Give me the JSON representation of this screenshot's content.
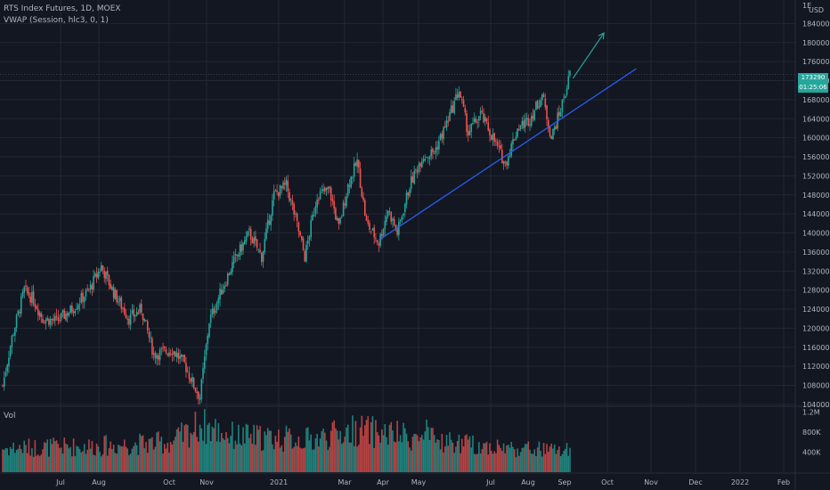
{
  "chart_data": {
    "type": "candlestick",
    "header": {
      "symbol_line": "RTS Index Futures, 1D, MOEX",
      "indicator_line": "VWAP (Session, hlc3, 0, 1)"
    },
    "currency": "USD",
    "price_ticks": [
      104000,
      108000,
      112000,
      116000,
      120000,
      124000,
      128000,
      132000,
      136000,
      140000,
      144000,
      148000,
      152000,
      156000,
      160000,
      164000,
      168000,
      172000,
      176000,
      180000,
      184000
    ],
    "price_tick_labels": [
      "104000",
      "108000",
      "112000",
      "116000",
      "120000",
      "124000",
      "128000",
      "132000",
      "136000",
      "140000",
      "144000",
      "148000",
      "152000",
      "156000",
      "160000",
      "164000",
      "168000",
      "172000",
      "176000",
      "180000",
      "184000"
    ],
    "top_cut_label": "1E",
    "ylim": [
      103800,
      188000
    ],
    "volume_label": "Vol",
    "volume_ticks": [
      "1.2M",
      "800K",
      "400K"
    ],
    "volume_tick_values": [
      1200000,
      800000,
      400000
    ],
    "x_month_labels": [
      "Jul",
      "Aug",
      "Oct",
      "Nov",
      "2021",
      "Mar",
      "Apr",
      "May",
      "Jul",
      "Aug",
      "Sep",
      "Oct",
      "Nov",
      "Dec",
      "2022",
      "Feb"
    ],
    "last_price": "173290",
    "last_price_sub": "01:25:06",
    "colors": {
      "up": "#26a69a",
      "down": "#ef5350",
      "background": "#131722",
      "grid": "#232733",
      "trendline": "#2962ff",
      "arrow": "#26a69a",
      "axis_text": "#b2b5be"
    },
    "keyframes": [
      {
        "t": 0,
        "p": 108000
      },
      {
        "t": 6,
        "p": 118000
      },
      {
        "t": 14,
        "p": 128000
      },
      {
        "t": 20,
        "p": 126000
      },
      {
        "t": 26,
        "p": 122000
      },
      {
        "t": 35,
        "p": 121500
      },
      {
        "t": 45,
        "p": 124000
      },
      {
        "t": 56,
        "p": 128000
      },
      {
        "t": 64,
        "p": 133000
      },
      {
        "t": 72,
        "p": 127500
      },
      {
        "t": 82,
        "p": 122000
      },
      {
        "t": 90,
        "p": 124000
      },
      {
        "t": 98,
        "p": 114500
      },
      {
        "t": 110,
        "p": 115500
      },
      {
        "t": 118,
        "p": 112500
      },
      {
        "t": 124,
        "p": 108000
      },
      {
        "t": 128,
        "p": 105500
      },
      {
        "t": 134,
        "p": 121500
      },
      {
        "t": 142,
        "p": 128000
      },
      {
        "t": 150,
        "p": 134000
      },
      {
        "t": 160,
        "p": 140000
      },
      {
        "t": 168,
        "p": 135000
      },
      {
        "t": 176,
        "p": 148000
      },
      {
        "t": 184,
        "p": 150000
      },
      {
        "t": 190,
        "p": 143000
      },
      {
        "t": 196,
        "p": 135000
      },
      {
        "t": 204,
        "p": 148000
      },
      {
        "t": 212,
        "p": 149000
      },
      {
        "t": 218,
        "p": 141000
      },
      {
        "t": 224,
        "p": 150000
      },
      {
        "t": 230,
        "p": 155000
      },
      {
        "t": 236,
        "p": 142000
      },
      {
        "t": 244,
        "p": 138000
      },
      {
        "t": 250,
        "p": 145000
      },
      {
        "t": 256,
        "p": 140000
      },
      {
        "t": 264,
        "p": 150000
      },
      {
        "t": 272,
        "p": 156000
      },
      {
        "t": 280,
        "p": 157000
      },
      {
        "t": 288,
        "p": 163000
      },
      {
        "t": 296,
        "p": 170000
      },
      {
        "t": 302,
        "p": 161000
      },
      {
        "t": 310,
        "p": 165000
      },
      {
        "t": 318,
        "p": 160000
      },
      {
        "t": 326,
        "p": 154500
      },
      {
        "t": 334,
        "p": 162000
      },
      {
        "t": 342,
        "p": 164000
      },
      {
        "t": 350,
        "p": 169000
      },
      {
        "t": 356,
        "p": 160000
      },
      {
        "t": 362,
        "p": 166000
      },
      {
        "t": 368,
        "p": 173300
      }
    ],
    "volume_keyframes": [
      {
        "t": 0,
        "v": 480000
      },
      {
        "t": 60,
        "v": 520000
      },
      {
        "t": 110,
        "v": 600000
      },
      {
        "t": 128,
        "v": 950000
      },
      {
        "t": 150,
        "v": 720000
      },
      {
        "t": 200,
        "v": 650000
      },
      {
        "t": 230,
        "v": 850000
      },
      {
        "t": 260,
        "v": 720000
      },
      {
        "t": 300,
        "v": 560000
      },
      {
        "t": 330,
        "v": 480000
      },
      {
        "t": 368,
        "v": 420000
      }
    ],
    "trendline": {
      "t1": 244,
      "p1": 138500,
      "t2": 411,
      "p2": 174500
    },
    "forecast_arrow": {
      "t1": 370,
      "p1": 172500,
      "t2": 390,
      "p2": 182000
    }
  }
}
